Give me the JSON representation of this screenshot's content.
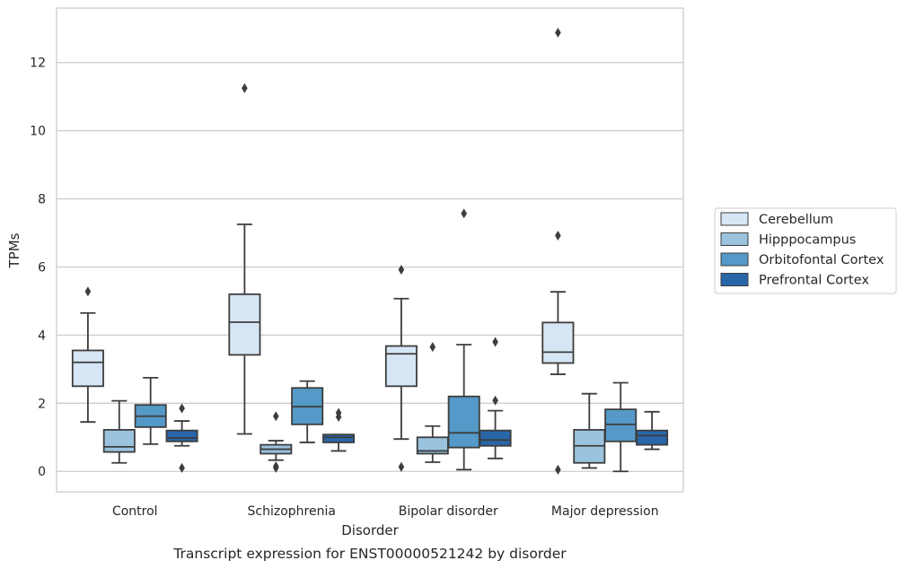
{
  "chart_data": {
    "type": "box",
    "caption": "Transcript expression for ENST00000521242 by disorder",
    "xlabel": "Disorder",
    "ylabel": "TPMs",
    "ylim": [
      -0.6,
      13.6
    ],
    "yticks": [
      0,
      2,
      4,
      6,
      8,
      10,
      12
    ],
    "categories": [
      "Control",
      "Schizophrenia",
      "Bipolar disorder",
      "Major depression"
    ],
    "legend_position": "right",
    "grid": "horizontal",
    "series": [
      {
        "name": "Cerebellum",
        "color": "#d6e6f4",
        "boxes": [
          {
            "whislo": 1.45,
            "q1": 2.5,
            "med": 3.2,
            "q3": 3.55,
            "whishi": 4.65,
            "fliers": [
              5.28
            ]
          },
          {
            "whislo": 1.1,
            "q1": 3.42,
            "med": 4.38,
            "q3": 5.2,
            "whishi": 7.25,
            "fliers": [
              11.25
            ]
          },
          {
            "whislo": 0.95,
            "q1": 2.5,
            "med": 3.45,
            "q3": 3.68,
            "whishi": 5.07,
            "fliers": [
              5.92,
              0.13
            ]
          },
          {
            "whislo": 2.85,
            "q1": 3.18,
            "med": 3.5,
            "q3": 4.37,
            "whishi": 5.27,
            "fliers": [
              6.92,
              12.88,
              0.05
            ]
          }
        ]
      },
      {
        "name": "Hipppocampus",
        "color": "#9ac3de",
        "boxes": [
          {
            "whislo": 0.25,
            "q1": 0.57,
            "med": 0.72,
            "q3": 1.22,
            "whishi": 2.07,
            "fliers": []
          },
          {
            "whislo": 0.33,
            "q1": 0.52,
            "med": 0.65,
            "q3": 0.78,
            "whishi": 0.9,
            "fliers": [
              1.62,
              0.1,
              0.15
            ]
          },
          {
            "whislo": 0.27,
            "q1": 0.52,
            "med": 0.6,
            "q3": 1.0,
            "whishi": 1.33,
            "fliers": [
              3.65
            ]
          },
          {
            "whislo": 0.1,
            "q1": 0.25,
            "med": 0.75,
            "q3": 1.22,
            "whishi": 2.28,
            "fliers": []
          }
        ]
      },
      {
        "name": "Orbitofontal Cortex",
        "color": "#5599c8",
        "boxes": [
          {
            "whislo": 0.8,
            "q1": 1.3,
            "med": 1.62,
            "q3": 1.95,
            "whishi": 2.75,
            "fliers": []
          },
          {
            "whislo": 0.85,
            "q1": 1.38,
            "med": 1.9,
            "q3": 2.45,
            "whishi": 2.65,
            "fliers": []
          },
          {
            "whislo": 0.05,
            "q1": 0.7,
            "med": 1.13,
            "q3": 2.2,
            "whishi": 3.72,
            "fliers": [
              7.57
            ]
          },
          {
            "whislo": 0.0,
            "q1": 0.88,
            "med": 1.38,
            "q3": 1.82,
            "whishi": 2.6,
            "fliers": []
          }
        ]
      },
      {
        "name": "Prefrontal Cortex",
        "color": "#2866a8",
        "boxes": [
          {
            "whislo": 0.75,
            "q1": 0.88,
            "med": 0.98,
            "q3": 1.2,
            "whishi": 1.48,
            "fliers": [
              1.85,
              0.1
            ]
          },
          {
            "whislo": 0.6,
            "q1": 0.85,
            "med": 1.0,
            "q3": 1.08,
            "whishi": 1.08,
            "fliers": [
              1.72,
              1.6
            ]
          },
          {
            "whislo": 0.38,
            "q1": 0.75,
            "med": 0.92,
            "q3": 1.2,
            "whishi": 1.78,
            "fliers": [
              3.8,
              2.08
            ]
          },
          {
            "whislo": 0.65,
            "q1": 0.78,
            "med": 1.05,
            "q3": 1.2,
            "whishi": 1.75,
            "fliers": []
          }
        ]
      }
    ]
  }
}
